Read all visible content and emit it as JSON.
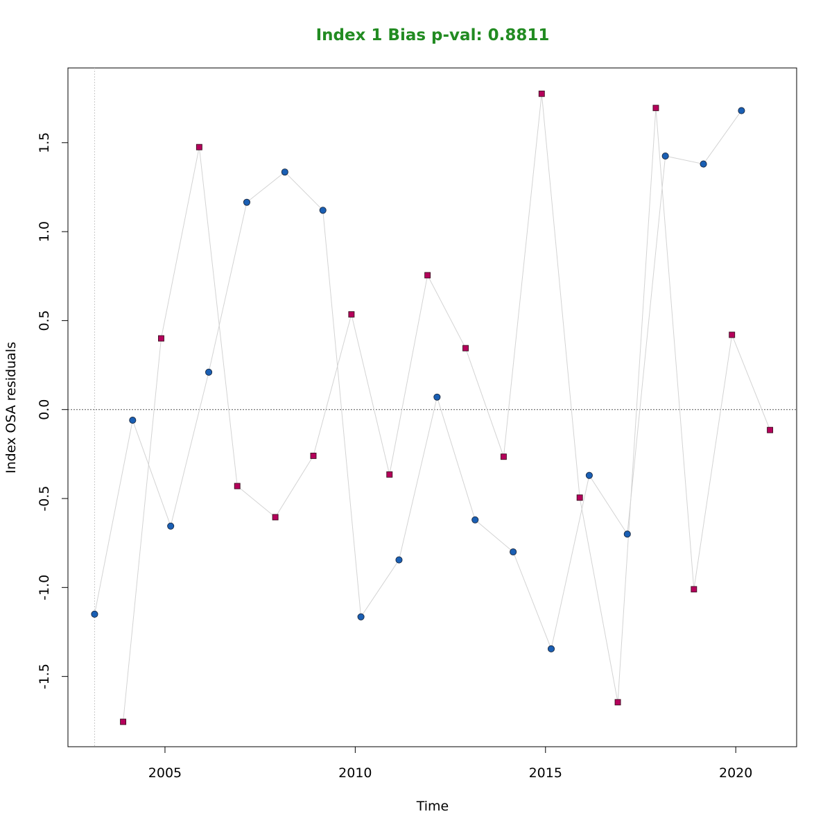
{
  "chart_data": {
    "type": "scatter",
    "title": "Index 1 Bias p-val: 0.8811",
    "title_color": "#228B22",
    "xlabel": "Time",
    "ylabel": "Index OSA residuals",
    "xlim": [
      2002.45,
      2021.6
    ],
    "ylim": [
      -1.895,
      1.92
    ],
    "x_ticks": [
      2005,
      2010,
      2015,
      2020
    ],
    "y_ticks": [
      -1.5,
      -1.0,
      -0.5,
      0.0,
      0.5,
      1.0,
      1.5
    ],
    "y_tick_labels": [
      "-1.5",
      "-1.0",
      "-0.5",
      "0.0",
      "0.5",
      "1.0",
      "1.5"
    ],
    "reference_hline": 0.0,
    "reference_vline": 2003.15,
    "grid": false,
    "series": [
      {
        "marker": "circle",
        "color": "#1a5fb4",
        "line_color": "#d3d3d3",
        "points": [
          {
            "x": 2003.15,
            "y": -1.15
          },
          {
            "x": 2004.15,
            "y": -0.06
          },
          {
            "x": 2005.15,
            "y": -0.655
          },
          {
            "x": 2006.15,
            "y": 0.21
          },
          {
            "x": 2007.15,
            "y": 1.165
          },
          {
            "x": 2008.15,
            "y": 1.335
          },
          {
            "x": 2009.15,
            "y": 1.12
          },
          {
            "x": 2010.15,
            "y": -1.165
          },
          {
            "x": 2011.15,
            "y": -0.845
          },
          {
            "x": 2012.15,
            "y": 0.07
          },
          {
            "x": 2013.15,
            "y": -0.62
          },
          {
            "x": 2014.15,
            "y": -0.8
          },
          {
            "x": 2015.15,
            "y": -1.345
          },
          {
            "x": 2016.15,
            "y": -0.37
          },
          {
            "x": 2017.15,
            "y": -0.7
          },
          {
            "x": 2018.15,
            "y": 1.425
          },
          {
            "x": 2019.15,
            "y": 1.38
          },
          {
            "x": 2020.15,
            "y": 1.68
          }
        ]
      },
      {
        "marker": "square",
        "color": "#b5005b",
        "line_color": "#d3d3d3",
        "points": [
          {
            "x": 2003.9,
            "y": -1.755
          },
          {
            "x": 2004.9,
            "y": 0.4
          },
          {
            "x": 2005.9,
            "y": 1.475
          },
          {
            "x": 2006.9,
            "y": -0.43
          },
          {
            "x": 2007.9,
            "y": -0.605
          },
          {
            "x": 2008.9,
            "y": -0.26
          },
          {
            "x": 2009.9,
            "y": 0.535
          },
          {
            "x": 2010.9,
            "y": -0.365
          },
          {
            "x": 2011.9,
            "y": 0.755
          },
          {
            "x": 2012.9,
            "y": 0.345
          },
          {
            "x": 2013.9,
            "y": -0.265
          },
          {
            "x": 2014.9,
            "y": 1.775
          },
          {
            "x": 2015.9,
            "y": -0.495
          },
          {
            "x": 2016.9,
            "y": -1.645
          },
          {
            "x": 2017.9,
            "y": 1.695
          },
          {
            "x": 2018.9,
            "y": -1.01
          },
          {
            "x": 2019.9,
            "y": 0.42
          },
          {
            "x": 2020.9,
            "y": -0.115
          }
        ]
      }
    ]
  }
}
